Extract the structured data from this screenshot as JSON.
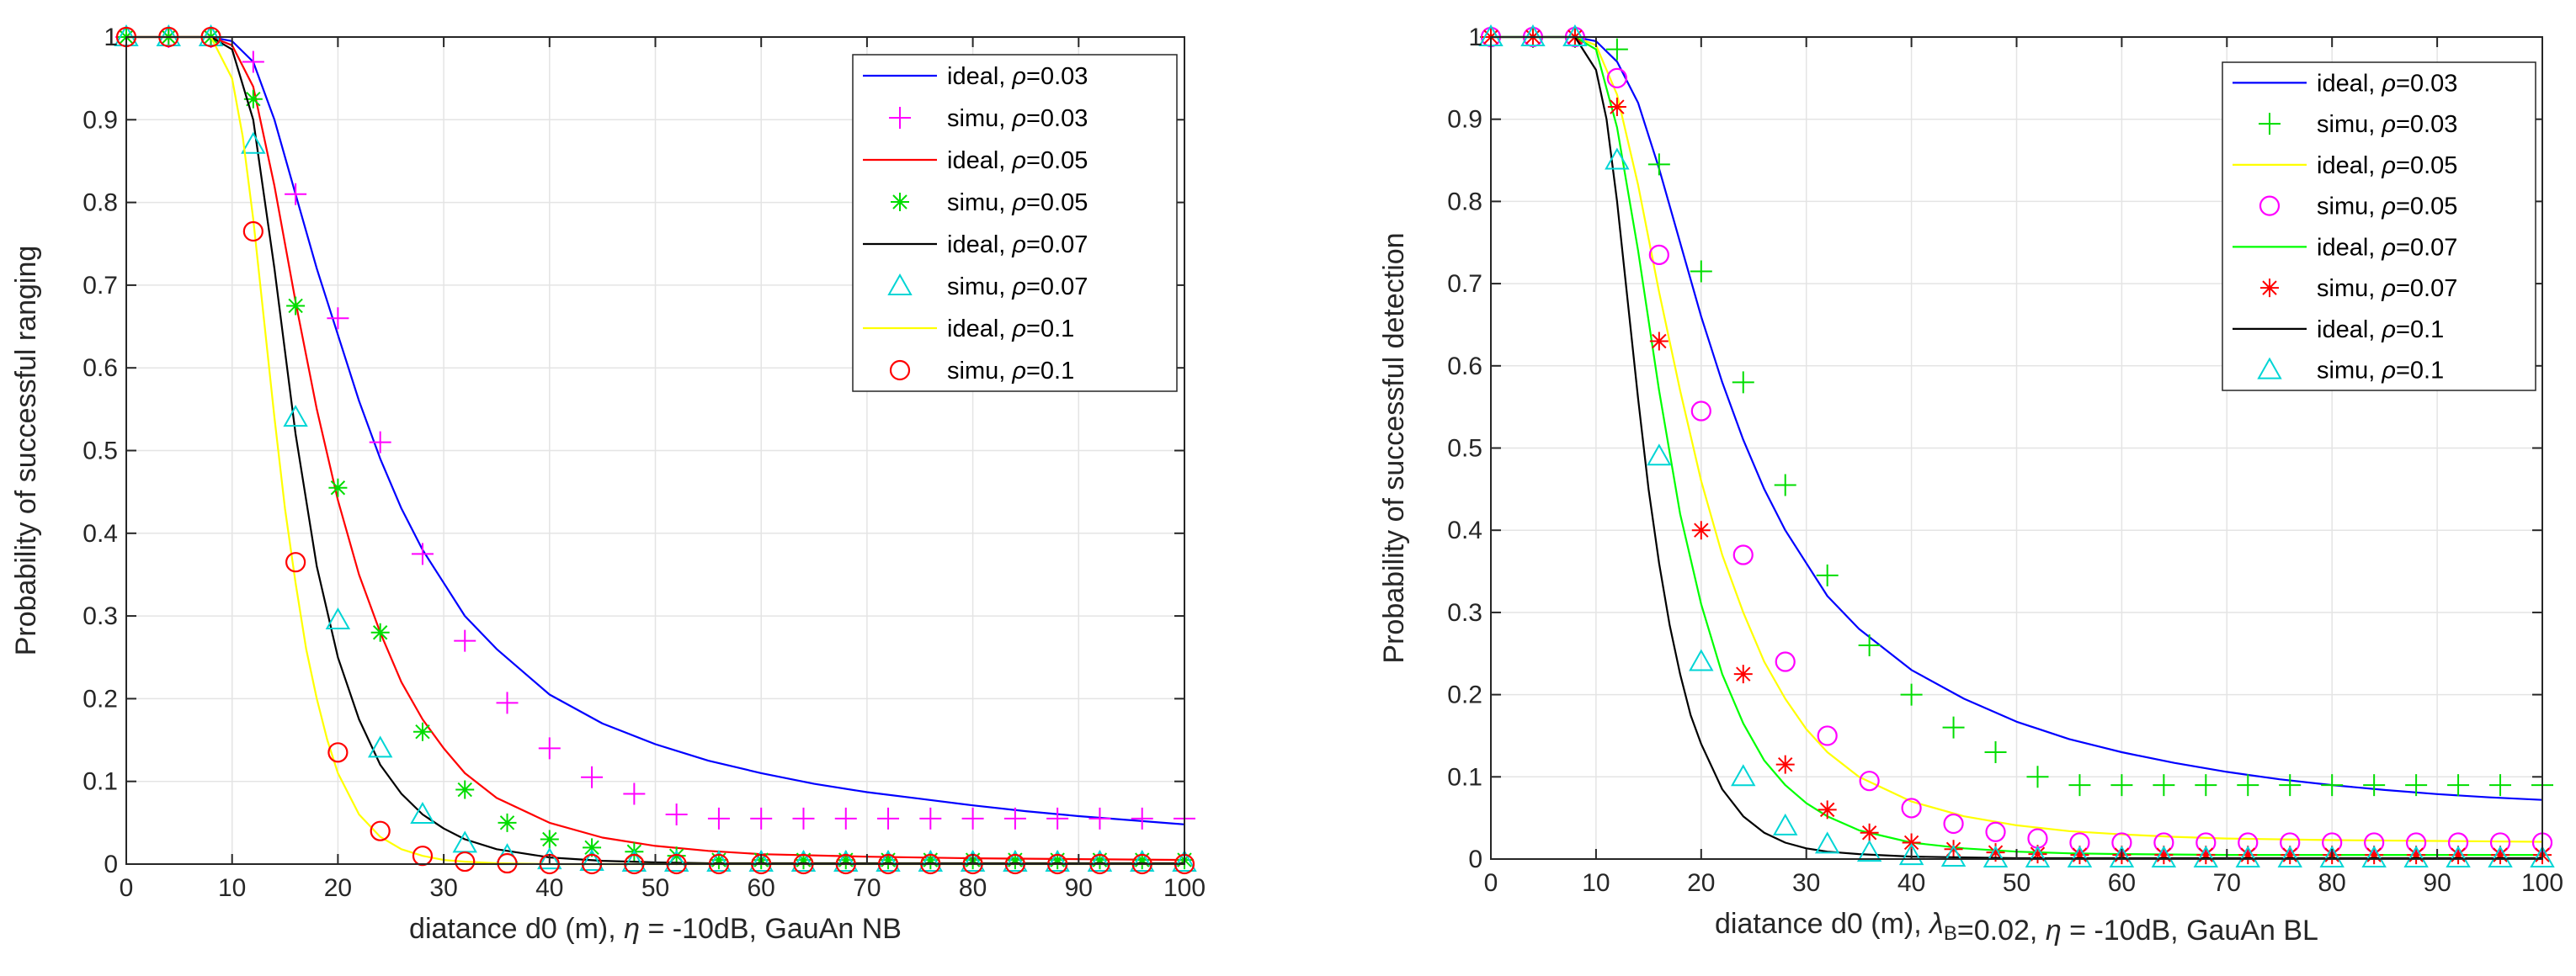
{
  "chart_data": [
    {
      "type": "line",
      "xlim": [
        0,
        100
      ],
      "ylim": [
        0,
        1
      ],
      "xticks": [
        "0",
        "10",
        "20",
        "30",
        "40",
        "50",
        "60",
        "70",
        "80",
        "90",
        "100"
      ],
      "yticks": [
        "0",
        "0.1",
        "0.2",
        "0.3",
        "0.4",
        "0.5",
        "0.6",
        "0.7",
        "0.8",
        "0.9",
        "1"
      ],
      "xlabel": "diatance d0 (m),   η = -10dB, GauAn NB",
      "ylabel": "Probability  of  successful  ranging",
      "grid": true,
      "legend_position": "top-right",
      "series": [
        {
          "legend": "ideal, ρ=0.03",
          "style": "line",
          "color": "#0000ff",
          "x": [
            0,
            8,
            10,
            12,
            14,
            16,
            18,
            20,
            22,
            24,
            26,
            28,
            30,
            32,
            35,
            40,
            45,
            50,
            55,
            60,
            65,
            70,
            75,
            80,
            85,
            90,
            95,
            100
          ],
          "y": [
            1,
            1,
            0.995,
            0.97,
            0.9,
            0.81,
            0.72,
            0.64,
            0.56,
            0.49,
            0.43,
            0.38,
            0.34,
            0.3,
            0.26,
            0.205,
            0.17,
            0.145,
            0.125,
            0.11,
            0.097,
            0.087,
            0.079,
            0.071,
            0.064,
            0.058,
            0.053,
            0.048
          ]
        },
        {
          "legend": "simu, ρ=0.03",
          "style": "marker",
          "marker": "plus",
          "color": "#ff00ff",
          "x": [
            0,
            4,
            8,
            12,
            16,
            20,
            24,
            28,
            32,
            36,
            40,
            44,
            48,
            52,
            56,
            60,
            64,
            68,
            72,
            76,
            80,
            84,
            88,
            92,
            96,
            100
          ],
          "y": [
            1,
            1,
            1,
            0.97,
            0.81,
            0.66,
            0.51,
            0.375,
            0.27,
            0.195,
            0.14,
            0.105,
            0.085,
            0.06,
            0.055,
            0.055,
            0.055,
            0.055,
            0.055,
            0.055,
            0.055,
            0.055,
            0.055,
            0.055,
            0.055,
            0.055
          ]
        },
        {
          "legend": "ideal, ρ=0.05",
          "style": "line",
          "color": "#ff0000",
          "x": [
            0,
            8,
            10,
            12,
            14,
            16,
            18,
            20,
            22,
            24,
            26,
            28,
            30,
            32,
            35,
            40,
            45,
            50,
            55,
            60,
            70,
            80,
            90,
            100
          ],
          "y": [
            1,
            1,
            0.99,
            0.94,
            0.82,
            0.68,
            0.55,
            0.44,
            0.35,
            0.28,
            0.22,
            0.175,
            0.14,
            0.11,
            0.08,
            0.05,
            0.032,
            0.022,
            0.016,
            0.012,
            0.009,
            0.007,
            0.006,
            0.005
          ]
        },
        {
          "legend": "simu, ρ=0.05",
          "style": "marker",
          "marker": "asterisk",
          "color": "#00dd00",
          "x": [
            0,
            4,
            8,
            12,
            16,
            20,
            24,
            28,
            32,
            36,
            40,
            44,
            48,
            52,
            56,
            60,
            64,
            68,
            72,
            76,
            80,
            84,
            88,
            92,
            96,
            100
          ],
          "y": [
            1,
            1,
            1,
            0.925,
            0.675,
            0.455,
            0.28,
            0.16,
            0.09,
            0.05,
            0.03,
            0.02,
            0.015,
            0.01,
            0.005,
            0.005,
            0.005,
            0.005,
            0.005,
            0.005,
            0.005,
            0.005,
            0.005,
            0.005,
            0.005,
            0.005
          ]
        },
        {
          "legend": "ideal, ρ=0.07",
          "style": "line",
          "color": "#000000",
          "x": [
            0,
            8,
            10,
            12,
            14,
            16,
            18,
            20,
            22,
            24,
            26,
            28,
            30,
            32,
            35,
            40,
            45,
            50,
            55,
            60,
            70,
            80,
            90,
            100
          ],
          "y": [
            1,
            1,
            0.985,
            0.9,
            0.72,
            0.52,
            0.36,
            0.25,
            0.175,
            0.12,
            0.085,
            0.06,
            0.043,
            0.03,
            0.018,
            0.008,
            0.004,
            0.002,
            0.001,
            0.001,
            0.001,
            0.001,
            0.001,
            0.001
          ]
        },
        {
          "legend": "simu, ρ=0.07",
          "style": "marker",
          "marker": "triangle",
          "color": "#00d5d5",
          "x": [
            0,
            4,
            8,
            12,
            16,
            20,
            24,
            28,
            32,
            36,
            40,
            44,
            48,
            52,
            56,
            60,
            64,
            68,
            72,
            76,
            80,
            84,
            88,
            92,
            96,
            100
          ],
          "y": [
            1,
            1,
            1,
            0.87,
            0.54,
            0.295,
            0.14,
            0.06,
            0.025,
            0.01,
            0.005,
            0.003,
            0.002,
            0.002,
            0.002,
            0.002,
            0.002,
            0.002,
            0.002,
            0.002,
            0.002,
            0.002,
            0.002,
            0.002,
            0.002,
            0.002
          ]
        },
        {
          "legend": "ideal, ρ=0.1",
          "style": "line",
          "color": "#ffff00",
          "x": [
            0,
            8,
            10,
            11,
            12,
            13,
            14,
            15,
            16,
            17,
            18,
            19,
            20,
            22,
            24,
            26,
            28,
            30,
            32,
            35,
            40,
            50,
            60,
            70,
            80,
            90,
            100
          ],
          "y": [
            1,
            1,
            0.95,
            0.88,
            0.78,
            0.66,
            0.54,
            0.43,
            0.34,
            0.26,
            0.2,
            0.15,
            0.11,
            0.06,
            0.033,
            0.018,
            0.01,
            0.005,
            0.003,
            0.001,
            0,
            0,
            0,
            0,
            0,
            0,
            0
          ]
        },
        {
          "legend": "simu, ρ=0.1",
          "style": "marker",
          "marker": "circle",
          "color": "#ff0000",
          "x": [
            0,
            4,
            8,
            12,
            16,
            20,
            24,
            28,
            32,
            36,
            40,
            44,
            48,
            52,
            56,
            60,
            64,
            68,
            72,
            76,
            80,
            84,
            88,
            92,
            96,
            100
          ],
          "y": [
            1,
            1,
            1,
            0.765,
            0.365,
            0.135,
            0.04,
            0.01,
            0.003,
            0.001,
            0,
            0,
            0,
            0,
            0,
            0,
            0,
            0,
            0,
            0,
            0,
            0,
            0,
            0,
            0,
            0
          ]
        }
      ]
    },
    {
      "type": "line",
      "xlim": [
        0,
        100
      ],
      "ylim": [
        0,
        1
      ],
      "xticks": [
        "0",
        "10",
        "20",
        "30",
        "40",
        "50",
        "60",
        "70",
        "80",
        "90",
        "100"
      ],
      "yticks": [
        "0",
        "0.1",
        "0.2",
        "0.3",
        "0.4",
        "0.5",
        "0.6",
        "0.7",
        "0.8",
        "0.9",
        "1"
      ],
      "xlabel": "diatance d0 (m),  λ_B=0.02, η = -10dB,  GauAn BL",
      "ylabel": "Probability of successful detection",
      "grid": true,
      "legend_position": "top-right",
      "series": [
        {
          "legend": "ideal, ρ=0.03",
          "style": "line",
          "color": "#0000ff",
          "x": [
            0,
            8,
            10,
            12,
            14,
            16,
            18,
            20,
            22,
            24,
            26,
            28,
            30,
            32,
            35,
            40,
            45,
            50,
            55,
            60,
            65,
            70,
            75,
            80,
            85,
            90,
            95,
            100
          ],
          "y": [
            1,
            1,
            0.995,
            0.97,
            0.92,
            0.84,
            0.75,
            0.66,
            0.58,
            0.51,
            0.45,
            0.4,
            0.36,
            0.32,
            0.28,
            0.23,
            0.195,
            0.167,
            0.146,
            0.13,
            0.117,
            0.106,
            0.097,
            0.09,
            0.084,
            0.079,
            0.075,
            0.072
          ]
        },
        {
          "legend": "simu, ρ=0.03",
          "style": "marker",
          "marker": "plus",
          "color": "#00dd00",
          "x": [
            0,
            4,
            8,
            12,
            16,
            20,
            24,
            28,
            32,
            36,
            40,
            44,
            48,
            52,
            56,
            60,
            64,
            68,
            72,
            76,
            80,
            84,
            88,
            92,
            96,
            100
          ],
          "y": [
            1,
            1,
            1,
            0.985,
            0.845,
            0.715,
            0.58,
            0.455,
            0.345,
            0.26,
            0.2,
            0.16,
            0.13,
            0.1,
            0.09,
            0.09,
            0.09,
            0.09,
            0.09,
            0.09,
            0.09,
            0.09,
            0.09,
            0.09,
            0.09,
            0.09
          ]
        },
        {
          "legend": "ideal, ρ=0.05",
          "style": "line",
          "color": "#ffff00",
          "x": [
            0,
            8,
            10,
            12,
            14,
            16,
            18,
            20,
            22,
            24,
            26,
            28,
            30,
            32,
            35,
            40,
            45,
            50,
            55,
            60,
            65,
            70,
            80,
            90,
            100
          ],
          "y": [
            1,
            1,
            0.99,
            0.93,
            0.82,
            0.69,
            0.57,
            0.46,
            0.37,
            0.3,
            0.24,
            0.195,
            0.158,
            0.13,
            0.1,
            0.07,
            0.052,
            0.041,
            0.034,
            0.03,
            0.027,
            0.025,
            0.023,
            0.022,
            0.021
          ]
        },
        {
          "legend": "simu, ρ=0.05",
          "style": "marker",
          "marker": "circle",
          "color": "#ff00ff",
          "x": [
            0,
            4,
            8,
            12,
            16,
            20,
            24,
            28,
            32,
            36,
            40,
            44,
            48,
            52,
            56,
            60,
            64,
            68,
            72,
            76,
            80,
            84,
            88,
            92,
            96,
            100
          ],
          "y": [
            1,
            1,
            1,
            0.95,
            0.735,
            0.545,
            0.37,
            0.24,
            0.15,
            0.095,
            0.062,
            0.043,
            0.033,
            0.025,
            0.02,
            0.02,
            0.02,
            0.02,
            0.02,
            0.02,
            0.02,
            0.02,
            0.02,
            0.02,
            0.02,
            0.02
          ]
        },
        {
          "legend": "ideal, ρ=0.07",
          "style": "line",
          "color": "#00ff00",
          "x": [
            0,
            8,
            10,
            12,
            14,
            16,
            18,
            20,
            22,
            24,
            26,
            28,
            30,
            32,
            35,
            40,
            45,
            50,
            55,
            60,
            70,
            80,
            90,
            100
          ],
          "y": [
            1,
            1,
            0.985,
            0.89,
            0.74,
            0.57,
            0.42,
            0.31,
            0.225,
            0.165,
            0.12,
            0.09,
            0.068,
            0.052,
            0.035,
            0.02,
            0.013,
            0.009,
            0.007,
            0.006,
            0.005,
            0.005,
            0.005,
            0.005
          ]
        },
        {
          "legend": "simu, ρ=0.07",
          "style": "marker",
          "marker": "asterisk",
          "color": "#ff0000",
          "x": [
            0,
            4,
            8,
            12,
            16,
            20,
            24,
            28,
            32,
            36,
            40,
            44,
            48,
            52,
            56,
            60,
            64,
            68,
            72,
            76,
            80,
            84,
            88,
            92,
            96,
            100
          ],
          "y": [
            1,
            1,
            1,
            0.915,
            0.63,
            0.4,
            0.225,
            0.115,
            0.06,
            0.032,
            0.02,
            0.012,
            0.008,
            0.006,
            0.005,
            0.005,
            0.005,
            0.005,
            0.005,
            0.005,
            0.005,
            0.005,
            0.005,
            0.005,
            0.005,
            0.005
          ]
        },
        {
          "legend": "ideal, ρ=0.1",
          "style": "line",
          "color": "#000000",
          "x": [
            0,
            8,
            10,
            11,
            12,
            13,
            14,
            15,
            16,
            17,
            18,
            19,
            20,
            22,
            24,
            26,
            28,
            30,
            32,
            35,
            40,
            50,
            60,
            70,
            80,
            90,
            100
          ],
          "y": [
            1,
            1,
            0.96,
            0.9,
            0.8,
            0.68,
            0.56,
            0.45,
            0.36,
            0.285,
            0.225,
            0.175,
            0.14,
            0.085,
            0.052,
            0.032,
            0.02,
            0.013,
            0.009,
            0.006,
            0.003,
            0.001,
            0.001,
            0.001,
            0.001,
            0.001,
            0.001
          ]
        },
        {
          "legend": "simu, ρ=0.1",
          "style": "marker",
          "marker": "triangle",
          "color": "#00d5d5",
          "x": [
            0,
            4,
            8,
            12,
            16,
            20,
            24,
            28,
            32,
            36,
            40,
            44,
            48,
            52,
            56,
            60,
            64,
            68,
            72,
            76,
            80,
            84,
            88,
            92,
            96,
            100
          ],
          "y": [
            1,
            1,
            1,
            0.85,
            0.49,
            0.24,
            0.1,
            0.04,
            0.018,
            0.008,
            0.004,
            0.002,
            0.001,
            0.001,
            0.001,
            0.001,
            0.001,
            0.001,
            0.001,
            0.001,
            0.001,
            0.001,
            0.001,
            0.001,
            0.001,
            0.001
          ]
        }
      ]
    }
  ]
}
